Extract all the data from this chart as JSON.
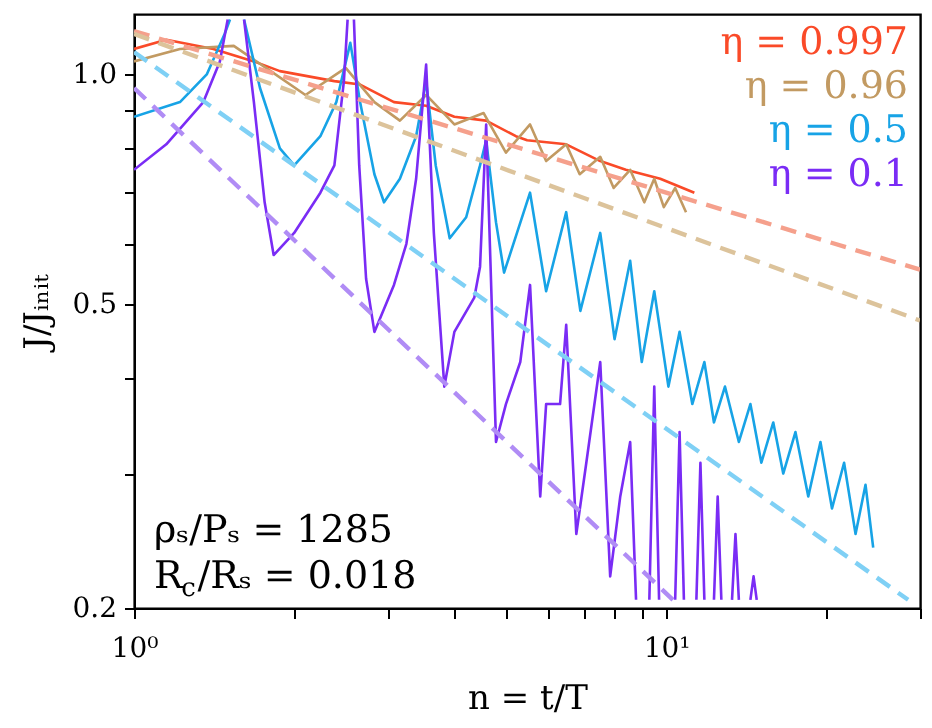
{
  "chart_data": {
    "type": "line",
    "xlabel": "n = t/T",
    "ylabel": "J/Jᵢₙᵢₜ",
    "xlim": [
      1,
      30
    ],
    "ylim": [
      0.2,
      1.2
    ],
    "xticks": [
      {
        "value": 1,
        "label": "10⁰"
      },
      {
        "value": 2,
        "label": null
      },
      {
        "value": 3,
        "label": null
      },
      {
        "value": 4,
        "label": null
      },
      {
        "value": 5,
        "label": null
      },
      {
        "value": 6,
        "label": null
      },
      {
        "value": 7,
        "label": null
      },
      {
        "value": 8,
        "label": null
      },
      {
        "value": 9,
        "label": null
      },
      {
        "value": 10,
        "label": "10¹"
      },
      {
        "value": 20,
        "label": null
      },
      {
        "value": 30,
        "label": null
      }
    ],
    "yticks": [
      0.2,
      {
        "value": 0.3,
        "label": null
      },
      {
        "value": 0.4,
        "label": null
      },
      0.5,
      {
        "value": 0.6,
        "label": null
      },
      {
        "value": 0.7,
        "label": null
      },
      {
        "value": 0.8,
        "label": null
      },
      {
        "value": 0.9,
        "label": null
      },
      {
        "value": 1,
        "label": "1.0"
      }
    ],
    "log": "xy",
    "grid": false,
    "legend": "top right",
    "annotations": [
      "ρₛ/Pₛ = 1285",
      "R$_{c}$/Rₛ = 0.018"
    ],
    "series": [
      {
        "name": "η = 0.997",
        "color": "#fa4a28",
        "line_style": "solid",
        "x": [
          1.0,
          1.15,
          1.41,
          1.68,
          1.88,
          2.38,
          2.66,
          3.08,
          3.54,
          4.0,
          4.59,
          5.22,
          5.48,
          6.49,
          7.52,
          8.4,
          9.75,
          11.3
        ],
        "values": [
          1.08,
          1.11,
          1.08,
          1.04,
          1.01,
          0.98,
          0.97,
          0.92,
          0.91,
          0.88,
          0.87,
          0.83,
          0.82,
          0.81,
          0.77,
          0.75,
          0.73,
          0.7
        ]
      },
      {
        "name": "η = 0.96",
        "color": "#c29a62",
        "line_style": "solid",
        "x": [
          1.0,
          1.22,
          1.54,
          1.77,
          2.1,
          2.5,
          2.83,
          3.16,
          3.54,
          4.0,
          4.54,
          5.0,
          5.55,
          5.95,
          6.49,
          6.88,
          7.52,
          7.97,
          8.56,
          9.1,
          9.5,
          9.9,
          10.4,
          10.9
        ],
        "values": [
          1.04,
          1.08,
          1.09,
          1.02,
          0.94,
          1.02,
          0.92,
          0.87,
          0.94,
          0.86,
          0.89,
          0.79,
          0.86,
          0.77,
          0.81,
          0.74,
          0.78,
          0.71,
          0.75,
          0.68,
          0.73,
          0.67,
          0.71,
          0.66
        ]
      },
      {
        "name": "η = 0.5",
        "color": "#17a3e6",
        "line_style": "solid",
        "x": [
          1.0,
          1.22,
          1.37,
          1.48,
          1.515,
          1.56,
          1.61,
          1.725,
          1.88,
          2.0,
          2.24,
          2.4,
          2.55,
          2.66,
          2.83,
          2.95,
          3.16,
          3.39,
          3.54,
          3.69,
          3.92,
          4.21,
          4.47,
          4.59,
          4.79,
          4.96,
          5.55,
          5.95,
          6.49,
          6.9,
          7.52,
          8.0,
          8.56,
          9.0,
          9.5,
          10.1,
          10.6,
          11.2,
          11.8,
          12.3,
          12.9,
          13.7,
          14.4,
          15.1,
          15.9,
          16.6,
          17.5,
          18.5,
          19.5,
          20.5,
          21.6,
          22.7,
          23.7,
          24.5
        ],
        "values": [
          0.88,
          0.92,
          1.0,
          1.13,
          1.18,
          null,
          1.18,
          0.96,
          0.8,
          0.76,
          0.83,
          0.92,
          1.1,
          0.92,
          0.74,
          0.68,
          0.73,
          0.83,
          0.98,
          0.76,
          0.61,
          0.65,
          0.76,
          0.82,
          0.64,
          0.55,
          0.7,
          0.52,
          0.66,
          0.49,
          0.62,
          0.45,
          0.57,
          0.42,
          0.52,
          0.39,
          0.46,
          0.37,
          0.42,
          0.35,
          0.39,
          0.33,
          0.37,
          0.31,
          0.35,
          0.3,
          0.34,
          0.28,
          0.33,
          0.27,
          0.31,
          0.25,
          0.29,
          0.24
        ]
      },
      {
        "name": "η = 0.1",
        "color": "#7a2cf5",
        "line_style": "solid",
        "x": [
          1.0,
          1.15,
          1.35,
          1.45,
          1.5,
          1.55,
          1.61,
          1.68,
          1.76,
          1.83,
          2.0,
          2.24,
          2.38,
          2.48,
          2.52,
          2.55,
          2.59,
          2.65,
          2.73,
          2.83,
          3.08,
          3.25,
          3.39,
          3.54,
          3.66,
          3.83,
          4.0,
          4.36,
          4.47,
          4.59,
          4.79,
          5.0,
          5.32,
          5.55,
          5.8,
          5.95,
          6.32,
          6.49,
          6.78,
          7.08,
          7.52,
          7.85,
          8.2,
          8.56,
          8.78,
          9.0,
          9.3,
          9.5,
          9.7,
          10.0,
          10.4,
          10.6,
          10.8,
          11.1,
          11.4,
          11.6,
          11.8,
          12.0,
          12.3,
          12.5,
          12.7,
          13.0,
          13.3,
          13.5,
          13.7,
          14.0,
          14.4,
          14.6,
          14.8
        ],
        "values": [
          0.75,
          0.81,
          0.92,
          1.04,
          1.18,
          null,
          1.18,
          0.92,
          0.68,
          0.58,
          0.62,
          0.7,
          0.76,
          0.98,
          1.18,
          null,
          1.18,
          0.76,
          0.54,
          0.46,
          0.53,
          0.6,
          0.73,
          1.03,
          0.62,
          0.39,
          0.46,
          0.51,
          0.56,
          0.86,
          0.33,
          0.37,
          0.42,
          0.53,
          0.28,
          0.37,
          0.37,
          0.47,
          0.25,
          0.31,
          0.42,
          0.22,
          0.28,
          0.33,
          0.205,
          null,
          0.205,
          0.39,
          0.205,
          null,
          0.205,
          0.34,
          0.205,
          null,
          0.205,
          0.31,
          0.205,
          null,
          0.205,
          0.28,
          0.205,
          null,
          0.205,
          0.25,
          0.205,
          null,
          0.205,
          0.22,
          0.205
        ]
      },
      {
        "color": "#f5a08c",
        "line_style": "dashed",
        "x": [
          1,
          30
        ],
        "values": [
          1.14,
          0.555
        ]
      },
      {
        "color": "#dcc39b",
        "line_style": "dashed",
        "x": [
          1,
          30
        ],
        "values": [
          1.13,
          0.476
        ]
      },
      {
        "color": "#7fd0f5",
        "line_style": "dashed",
        "x": [
          1,
          28.5
        ],
        "values": [
          1.07,
          0.205
        ]
      },
      {
        "color": "#b08cf5",
        "line_style": "dashed",
        "x": [
          1,
          10.3
        ],
        "values": [
          0.96,
          0.205
        ]
      }
    ]
  }
}
